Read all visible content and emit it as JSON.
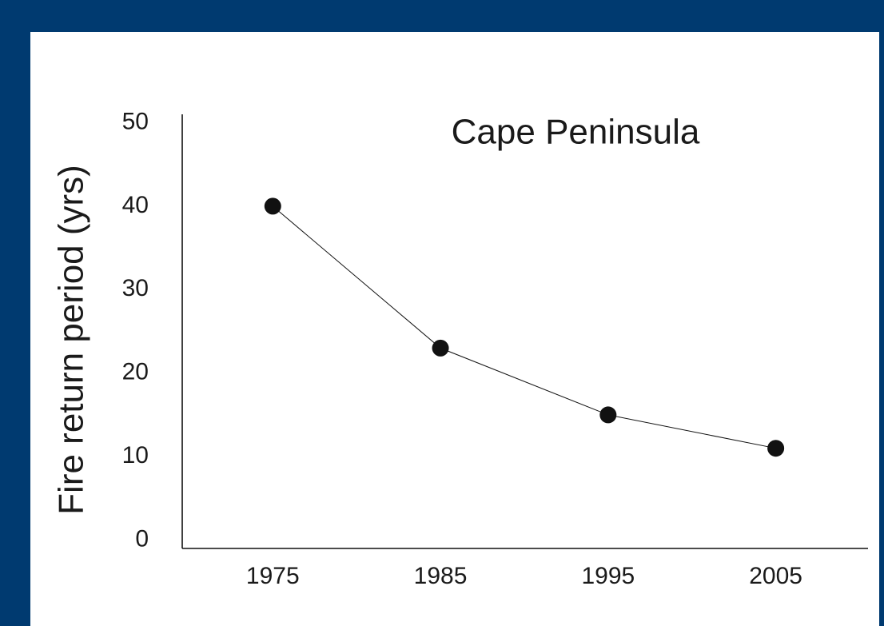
{
  "chart_data": {
    "type": "line",
    "title": "Cape Peninsula",
    "y_label": "Fire return period (yrs)",
    "x": [
      1975,
      1985,
      1995,
      2005
    ],
    "series": [
      {
        "name": "Cape Peninsula",
        "color": "#111111",
        "values": [
          40,
          23,
          15,
          11
        ]
      }
    ],
    "xlim": [
      1969.6,
      2010.5
    ],
    "xticks": [
      1975,
      1985,
      1995,
      2005
    ],
    "ylim": [
      -1,
      51
    ],
    "yticks": [
      0,
      10,
      20,
      30,
      40,
      50
    ],
    "grid": false
  }
}
